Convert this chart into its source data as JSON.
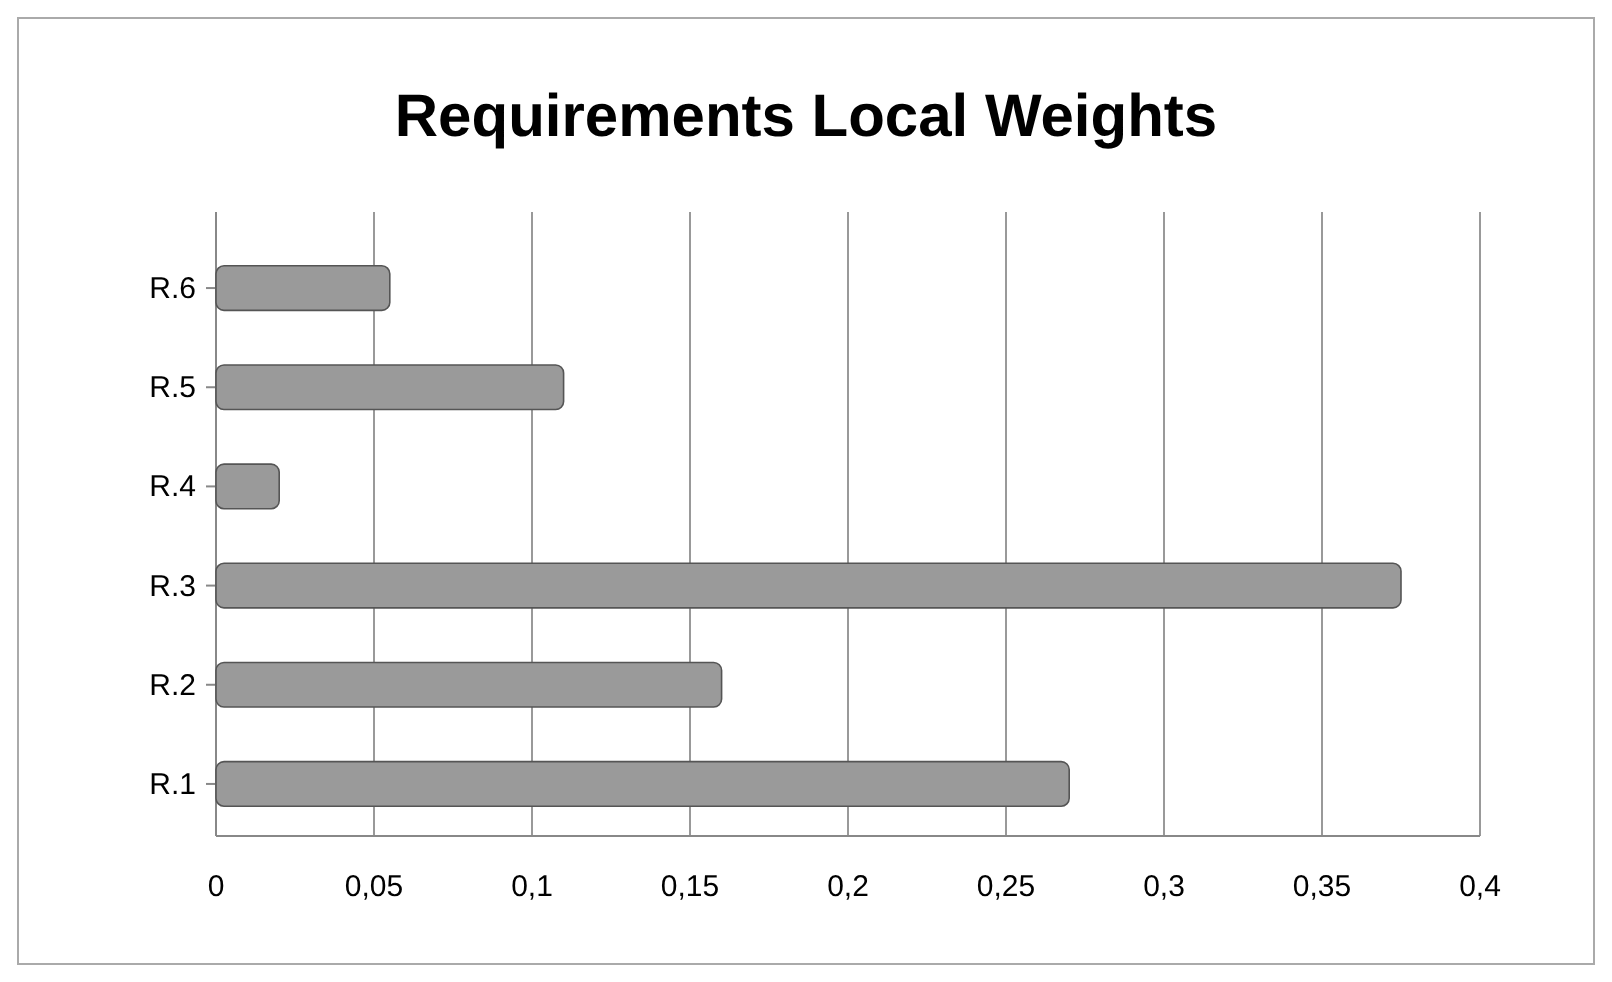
{
  "chart_data": {
    "type": "bar",
    "title": "Requirements Local Weights",
    "orientation": "horizontal",
    "categories": [
      "R.6",
      "R.5",
      "R.4",
      "R.3",
      "R.2",
      "R.1"
    ],
    "values": [
      0.055,
      0.11,
      0.02,
      0.375,
      0.16,
      0.27
    ],
    "color": "#9a9a9a",
    "xlim": [
      0,
      0.4
    ],
    "xticks": [
      0,
      {
        "value": 0.05,
        "label": "0,05"
      },
      {
        "value": 0.1,
        "label": "0,1"
      },
      {
        "value": 0.15,
        "label": "0,15"
      },
      {
        "value": 0.2,
        "label": "0,2"
      },
      {
        "value": 0.25,
        "label": "0,25"
      },
      {
        "value": 0.3,
        "label": "0,3"
      },
      {
        "value": 0.35,
        "label": "0,35"
      },
      {
        "value": 0.4,
        "label": "0,4"
      }
    ],
    "grid": "x"
  }
}
